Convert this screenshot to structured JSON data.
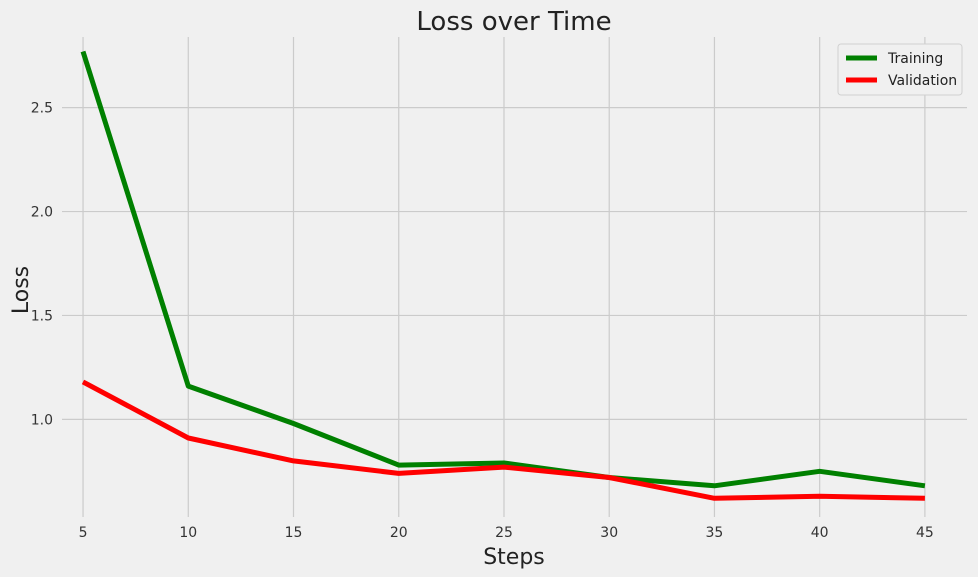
{
  "chart_data": {
    "type": "line",
    "title": "Loss over Time",
    "xlabel": "Steps",
    "ylabel": "Loss",
    "x": [
      5,
      10,
      15,
      20,
      25,
      30,
      35,
      40,
      45
    ],
    "xlim": [
      4,
      47
    ],
    "ylim": [
      0.53,
      2.84
    ],
    "xticks": [
      "5",
      "10",
      "15",
      "20",
      "25",
      "30",
      "35",
      "40",
      "45"
    ],
    "yticks": [
      "1.0",
      "1.5",
      "2.0",
      "2.5"
    ],
    "grid": true,
    "legend_position": "top-right",
    "series": [
      {
        "name": "Training",
        "color": "#008000",
        "values": [
          2.77,
          1.16,
          0.98,
          0.78,
          0.79,
          0.72,
          0.68,
          0.75,
          0.68
        ]
      },
      {
        "name": "Validation",
        "color": "#ff0000",
        "values": [
          1.18,
          0.91,
          0.8,
          0.74,
          0.77,
          0.72,
          0.62,
          0.63,
          0.62
        ]
      }
    ]
  }
}
